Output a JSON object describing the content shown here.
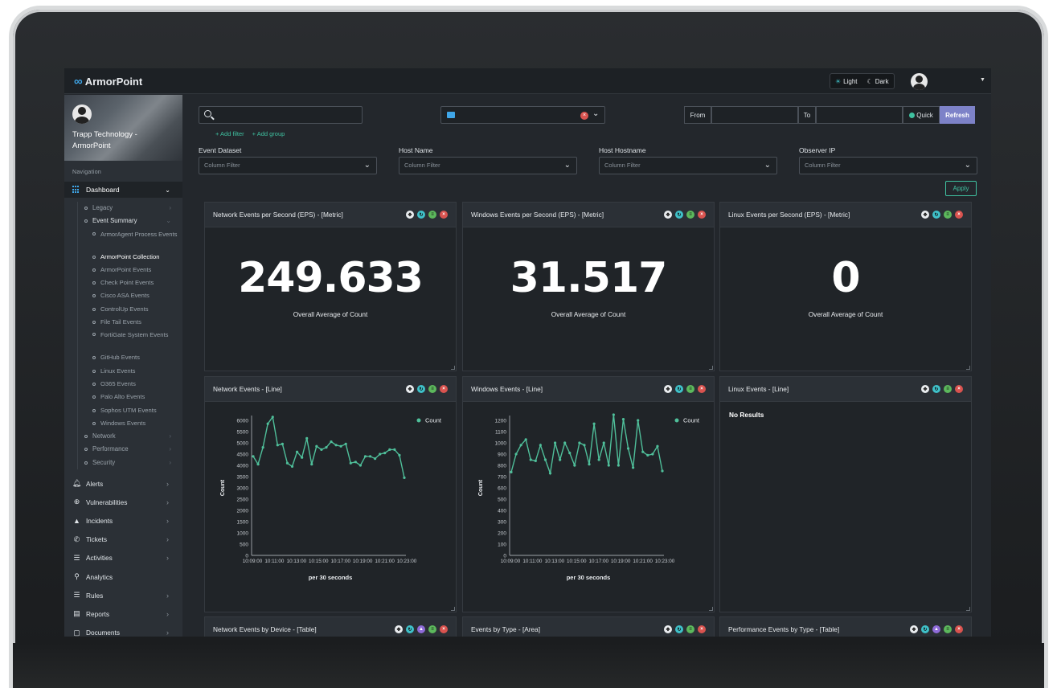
{
  "app": {
    "logo": "ArmorPoint"
  },
  "topbar": {
    "light_label": "Light",
    "dark_label": "Dark"
  },
  "profile": {
    "name": "Trapp Technology - ArmorPoint"
  },
  "sidebar": {
    "nav_title": "Navigation",
    "dashboard_label": "Dashboard",
    "legacy": "Legacy",
    "event_summary": "Event Summary",
    "event_children": [
      "ArmorAgent Process Events",
      "ArmorPoint Collection",
      "ArmorPoint Events",
      "Check Point Events",
      "Cisco ASA Events",
      "ControlUp Events",
      "File Tail Events",
      "FortiGate System Events",
      "GitHub Events",
      "Linux Events",
      "O365 Events",
      "Palo Alto Events",
      "Sophos UTM Events",
      "Windows Events"
    ],
    "network": "Network",
    "performance": "Performance",
    "security": "Security",
    "main_items": [
      "Alerts",
      "Vulnerabilities",
      "Incidents",
      "Tickets",
      "Activities",
      "Analytics",
      "Rules",
      "Reports",
      "Documents"
    ]
  },
  "filters": {
    "add_filter": "+ Add filter",
    "add_group": "+ Add group",
    "from_label": "From",
    "to_label": "To",
    "quick_label": "Quick",
    "refresh_label": "Refresh",
    "apply_label": "Apply",
    "columns": [
      {
        "label": "Event Dataset",
        "placeholder": "Column Filter"
      },
      {
        "label": "Host Name",
        "placeholder": "Column Filter"
      },
      {
        "label": "Host Hostname",
        "placeholder": "Column Filter"
      },
      {
        "label": "Observer IP",
        "placeholder": "Column Filter"
      }
    ]
  },
  "panels": {
    "metric1": {
      "title": "Network Events per Second (EPS) - [Metric]",
      "value": "249.633",
      "label": "Overall Average of Count"
    },
    "metric2": {
      "title": "Windows Events per Second (EPS) - [Metric]",
      "value": "31.517",
      "label": "Overall Average of Count"
    },
    "metric3": {
      "title": "Linux Events per Second (EPS) - [Metric]",
      "value": "0",
      "label": "Overall Average of Count"
    },
    "line1": {
      "title": "Network Events - [Line]"
    },
    "line2": {
      "title": "Windows Events - [Line]"
    },
    "line3": {
      "title": "Linux Events - [Line]",
      "empty": "No Results"
    },
    "table1": {
      "title": "Network Events by Device - [Table]"
    },
    "area1": {
      "title": "Events by Type - [Area]"
    },
    "table2": {
      "title": "Performance Events by Type - [Table]"
    }
  },
  "colors": {
    "accent": "#3fc1a0",
    "line": "#4fbf9a",
    "refresh": "#7d82c8",
    "close": "#d9534f"
  },
  "chart_data": [
    {
      "type": "line",
      "ylabel": "Count",
      "xlabel": "per 30 seconds",
      "legend": "Count",
      "ylim": [
        0,
        6000
      ],
      "yticks": [
        0,
        500,
        1000,
        1500,
        2000,
        2500,
        3000,
        3500,
        4000,
        4500,
        5000,
        5500,
        6000
      ],
      "xticks": [
        "10:09:00",
        "10:11:00",
        "10:13:00",
        "10:15:00",
        "10:17:00",
        "10:19:00",
        "10:21:00",
        "10:23:00"
      ],
      "series": [
        {
          "name": "Count",
          "values": [
            4400,
            4050,
            4800,
            5850,
            6150,
            4900,
            4950,
            4100,
            3950,
            4600,
            4350,
            5200,
            4050,
            4850,
            4700,
            4800,
            5050,
            4900,
            4850,
            4950,
            4100,
            4150,
            4000,
            4400,
            4400,
            4300,
            4500,
            4550,
            4700,
            4700,
            4450,
            3450
          ]
        }
      ]
    },
    {
      "type": "line",
      "ylabel": "Count",
      "xlabel": "per 30 seconds",
      "legend": "Count",
      "ylim": [
        0,
        1200
      ],
      "yticks": [
        0,
        100,
        200,
        300,
        400,
        500,
        600,
        700,
        800,
        900,
        1000,
        1100,
        1200
      ],
      "xticks": [
        "10:09:00",
        "10:11:00",
        "10:13:00",
        "10:15:00",
        "10:17:00",
        "10:19:00",
        "10:21:00",
        "10:23:00"
      ],
      "series": [
        {
          "name": "Count",
          "values": [
            740,
            900,
            980,
            1030,
            850,
            840,
            980,
            850,
            730,
            1000,
            850,
            1000,
            910,
            800,
            1000,
            980,
            810,
            1170,
            850,
            1000,
            800,
            1250,
            800,
            1210,
            950,
            780,
            1200,
            920,
            890,
            900,
            970,
            750
          ]
        }
      ]
    }
  ]
}
